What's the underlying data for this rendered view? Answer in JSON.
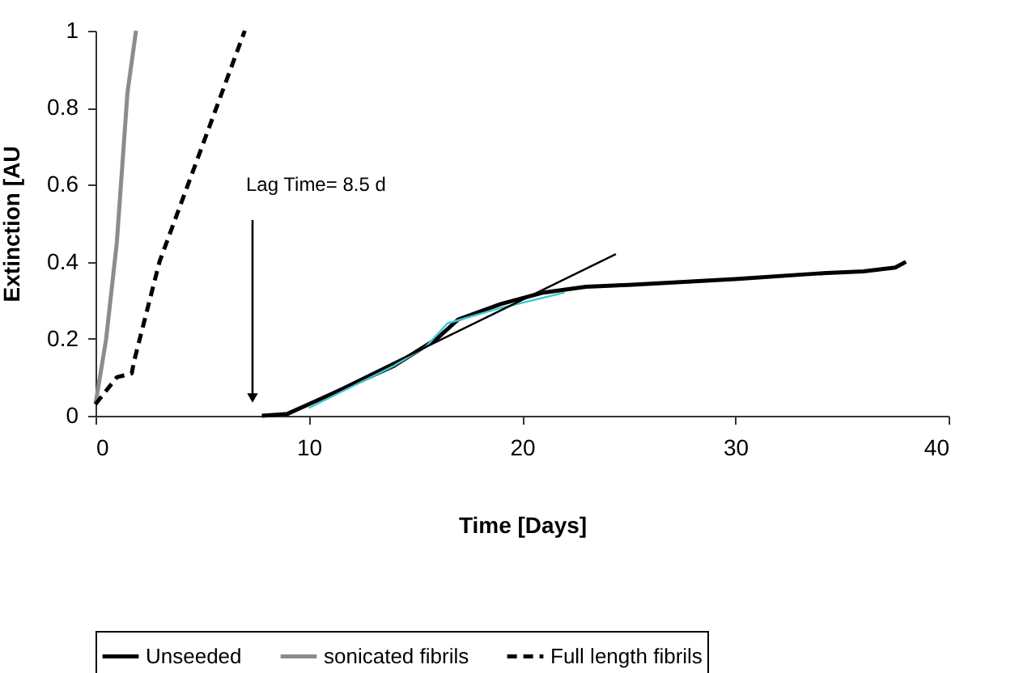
{
  "chart_data": {
    "type": "line",
    "xlabel": "Time [Days]",
    "ylabel": "Extinction [AU",
    "xlim": [
      0,
      40
    ],
    "ylim": [
      0,
      1
    ],
    "xticks": [
      0,
      10,
      20,
      30,
      40
    ],
    "yticks": [
      0,
      0.2,
      0.4,
      0.6,
      0.8,
      1
    ],
    "grid": false,
    "legend": "bottom",
    "marker": "none",
    "series": [
      {
        "name": "Unseeded",
        "color": "#000000",
        "line_style": "solid",
        "x": [
          7.8,
          9,
          10,
          12,
          14,
          16,
          17,
          19,
          21,
          23,
          25,
          30,
          34,
          36,
          37.5,
          38
        ],
        "values": [
          0,
          0.005,
          0.03,
          0.08,
          0.13,
          0.2,
          0.25,
          0.29,
          0.32,
          0.335,
          0.34,
          0.355,
          0.37,
          0.375,
          0.385,
          0.4
        ]
      },
      {
        "name": "sonicated fibrils",
        "color": "#8c8c8c",
        "line_style": "solid",
        "x": [
          0,
          0.5,
          1,
          1.5,
          1.9
        ],
        "values": [
          0.03,
          0.2,
          0.45,
          0.84,
          1
        ]
      },
      {
        "name": "Full length fibrils",
        "color": "#000000",
        "line_style": "dashed",
        "x": [
          0,
          1,
          1.7,
          1.8,
          3,
          5,
          7
        ],
        "values": [
          0.03,
          0.1,
          0.11,
          0.14,
          0.4,
          0.7,
          1
        ]
      },
      {
        "color": "#40c8d0",
        "line_style": "solid",
        "x": [
          10,
          12,
          14,
          15.5,
          16.5,
          19,
          22
        ],
        "values": [
          0.02,
          0.075,
          0.13,
          0.18,
          0.24,
          0.28,
          0.32
        ]
      },
      {
        "color": "#000000",
        "line_style": "solid",
        "x": [
          8.9,
          24.4
        ],
        "values": [
          0,
          0.42
        ]
      }
    ],
    "annotations": [
      "Lag Time= 8.5 d"
    ]
  }
}
